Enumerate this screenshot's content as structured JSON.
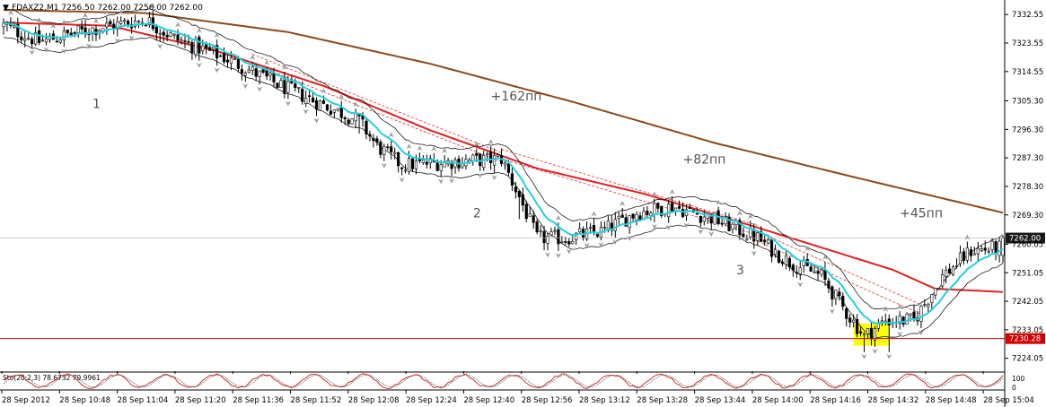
{
  "header": {
    "symbol_info": "FDAXZ2,M1  7256.50 7262.00 7256.00 7262.00"
  },
  "colors": {
    "background": "#ffffff",
    "grid": "#c8c8c8",
    "candle": "#000000",
    "ma_slow": "#8b4a1a",
    "ma_mid": "#e02020",
    "ma_fast": "#22d0e0",
    "envelope": "#000000",
    "level_line": "#c00000",
    "level_label_bg": "#d40000",
    "price_label_bg": "#1a1a1a",
    "highlight": "#ffff00",
    "fractal": "#9a9a9a",
    "dashed": "#e03030",
    "annotation_text": "#555555",
    "osc_main": "#c00000",
    "osc_signal": "#404040"
  },
  "chart_data": {
    "type": "candlestick",
    "symbol": "FDAXZ2",
    "timeframe": "M1",
    "last_bar": {
      "open": 7256.5,
      "high": 7262.0,
      "low": 7256.0,
      "close": 7262.0
    },
    "current_price_label": "7262.00",
    "level_label": "7230.28",
    "level_price": 7230.28,
    "ylim": [
      7220.0,
      7336.0
    ],
    "y_ticks": [
      "7332.55",
      "7323.55",
      "7314.55",
      "7305.30",
      "7296.30",
      "7287.30",
      "7278.30",
      "7269.30",
      "7260.05",
      "7251.05",
      "7242.05",
      "7233.05",
      "7224.05"
    ],
    "x_ticks": [
      "28 Sep 2012",
      "28 Sep 10:48",
      "28 Sep 11:04",
      "28 Sep 11:20",
      "28 Sep 11:36",
      "28 Sep 11:52",
      "28 Sep 12:08",
      "28 Sep 12:24",
      "28 Sep 12:40",
      "28 Sep 12:56",
      "28 Sep 13:12",
      "28 Sep 13:28",
      "28 Sep 13:44",
      "28 Sep 14:00",
      "28 Sep 14:16",
      "28 Sep 14:32",
      "28 Sep 14:48",
      "28 Sep 15:04"
    ],
    "annotations": [
      {
        "text": "1",
        "t": 25,
        "price": 7303.0
      },
      {
        "text": "+162пп",
        "t": 137,
        "price": 7305.5
      },
      {
        "text": "2",
        "t": 132,
        "price": 7268.5
      },
      {
        "text": "+82пп",
        "t": 191,
        "price": 7285.5
      },
      {
        "text": "3",
        "t": 206,
        "price": 7250.5
      },
      {
        "text": "+45пп",
        "t": 252,
        "price": 7268.5
      }
    ],
    "anchors": [
      [
        0,
        7329
      ],
      [
        10,
        7324
      ],
      [
        25,
        7328
      ],
      [
        40,
        7331
      ],
      [
        48,
        7325
      ],
      [
        62,
        7319
      ],
      [
        78,
        7310
      ],
      [
        92,
        7303
      ],
      [
        100,
        7299
      ],
      [
        105,
        7291
      ],
      [
        112,
        7285
      ],
      [
        125,
        7286
      ],
      [
        140,
        7287
      ],
      [
        145,
        7275
      ],
      [
        150,
        7262
      ],
      [
        158,
        7262
      ],
      [
        168,
        7264
      ],
      [
        178,
        7270
      ],
      [
        188,
        7272
      ],
      [
        200,
        7268
      ],
      [
        212,
        7262
      ],
      [
        220,
        7255
      ],
      [
        230,
        7250
      ],
      [
        236,
        7240
      ],
      [
        242,
        7231
      ],
      [
        248,
        7236
      ],
      [
        256,
        7236
      ],
      [
        264,
        7250
      ],
      [
        272,
        7258
      ],
      [
        281,
        7259
      ]
    ],
    "ma_slow_anchors": [
      [
        0,
        7334
      ],
      [
        40,
        7333
      ],
      [
        80,
        7327
      ],
      [
        120,
        7317
      ],
      [
        160,
        7305
      ],
      [
        200,
        7292
      ],
      [
        240,
        7281
      ],
      [
        281,
        7270
      ]
    ],
    "ma_mid_anchors": [
      [
        0,
        7330
      ],
      [
        30,
        7329
      ],
      [
        60,
        7321
      ],
      [
        90,
        7310
      ],
      [
        120,
        7296
      ],
      [
        150,
        7284
      ],
      [
        180,
        7276
      ],
      [
        210,
        7266
      ],
      [
        230,
        7259
      ],
      [
        250,
        7252
      ],
      [
        262,
        7246
      ],
      [
        281,
        7245
      ]
    ],
    "oscillator": {
      "label": "Sto(20,2,3) 78.6732 79.9961",
      "ticks": [
        "100",
        "0"
      ],
      "main": 78.6732,
      "signal": 79.9961
    }
  }
}
